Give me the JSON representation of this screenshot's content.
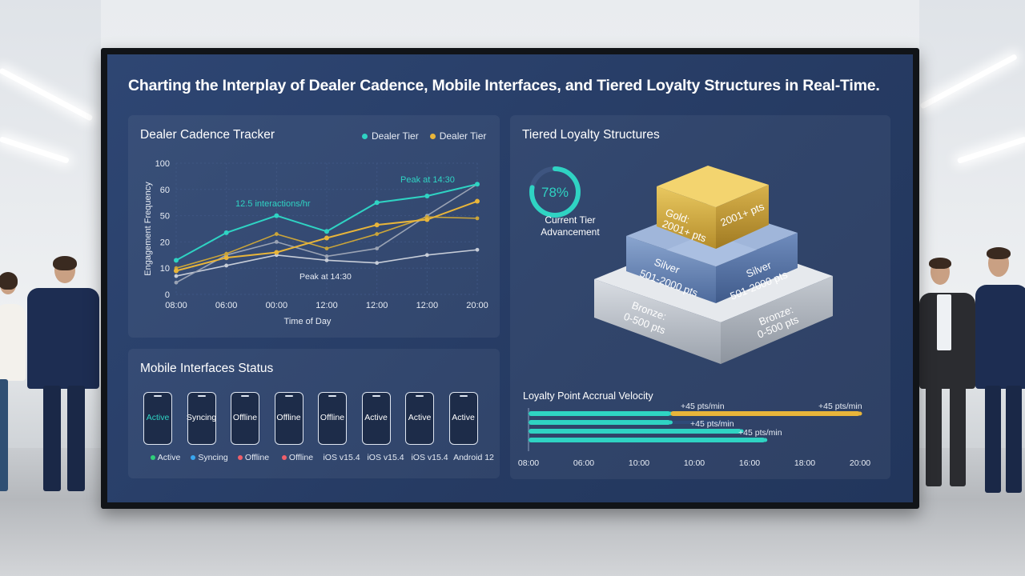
{
  "dashboard": {
    "title": "Charting the Interplay of Dealer Cadence, Mobile Interfaces, and Tiered Loyalty Structures in Real-Time."
  },
  "cadence": {
    "title": "Dealer Cadence Tracker",
    "legend": [
      {
        "label": "Dealer Tier",
        "color": "#2fd3c3"
      },
      {
        "label": "Dealer Tier",
        "color": "#e8b53a"
      }
    ],
    "annotations": {
      "peak_top": "Peak at 14:30",
      "rate": "12.5 interactions/hr",
      "peak_bottom": "Peak at 14:30"
    }
  },
  "chart_data": {
    "type": "line",
    "title": "Dealer Cadence Tracker",
    "xlabel": "Time of Day",
    "ylabel": "Engagement Frequency",
    "x": [
      "08:00",
      "06:00",
      "00:00",
      "12:00",
      "12:00",
      "12:00",
      "20:00"
    ],
    "y_ticks": [
      "100",
      "60",
      "50",
      "20",
      "10",
      "0"
    ],
    "ylim": [
      0,
      100
    ],
    "series": [
      {
        "name": "Dealer Tier",
        "color": "#2fd3c3",
        "values": [
          26,
          47,
          60,
          48,
          70,
          75,
          84
        ]
      },
      {
        "name": "Dealer Tier",
        "color": "#e8b53a",
        "values": [
          18,
          28,
          32,
          43,
          53,
          57,
          71
        ]
      },
      {
        "name": "",
        "color": "#c9a43a",
        "values": [
          20,
          31,
          46,
          35,
          46,
          59,
          58
        ]
      },
      {
        "name": "",
        "color": "#c7cdd8",
        "values": [
          14,
          22,
          30,
          26,
          24,
          30,
          34
        ]
      },
      {
        "name": "",
        "color": "#9aa3b4",
        "values": [
          9,
          30,
          40,
          29,
          35,
          60,
          84
        ]
      }
    ],
    "grid": true
  },
  "mobile": {
    "title": "Mobile Interfaces Status",
    "phones": [
      {
        "label": "Active",
        "color": "#2fd3c3"
      },
      {
        "label": "Syncing",
        "color": "#ffffff"
      },
      {
        "label": "Offline",
        "color": "#ffffff"
      },
      {
        "label": "Offline",
        "color": "#ffffff"
      },
      {
        "label": "Offline",
        "color": "#ffffff"
      },
      {
        "label": "Active",
        "color": "#ffffff"
      },
      {
        "label": "Active",
        "color": "#ffffff"
      },
      {
        "label": "Active",
        "color": "#ffffff"
      }
    ],
    "legend": [
      {
        "label": "Active",
        "dot": "#2fcf7a"
      },
      {
        "label": "Syncing",
        "dot": "#39a7f0"
      },
      {
        "label": "Offline",
        "dot": "#ef5f6a"
      },
      {
        "label": "Offline",
        "dot": "#ef5f6a"
      },
      {
        "label": "iOS v15.4",
        "dot": ""
      },
      {
        "label": "iOS v15.4",
        "dot": ""
      },
      {
        "label": "iOS v15.4",
        "dot": ""
      },
      {
        "label": "Android 12",
        "dot": ""
      }
    ]
  },
  "loyalty": {
    "title": "Tiered Loyalty Structures",
    "gauge": {
      "value": 0.78,
      "label": "78%",
      "caption_1": "Current Tier",
      "caption_2": "Advancement"
    },
    "tiers": {
      "gold": {
        "front_1": "Gold:",
        "front_2": "2001+ pts",
        "side": "2001+ pts"
      },
      "silver": {
        "front_1": "Silver",
        "front_2": "501-2000 pts",
        "side_1": "Silver",
        "side_2": "501-2000 pts"
      },
      "bronze": {
        "front_1": "Bronze:",
        "front_2": "0-500 pts",
        "side_1": "Bronze:",
        "side_2": "0-500 pts"
      }
    },
    "velocity": {
      "title": "Loyalty Point Accrual Velocity",
      "labels": [
        "+45 pts/min",
        "+45 pts/min",
        "+45 pts/min",
        "+45 pts/min"
      ],
      "bars": [
        {
          "start": "06:00",
          "end": "12:00",
          "color": "#2fd3c3"
        },
        {
          "start": "12:00",
          "end": "20:00",
          "color": "#e8b53a"
        },
        {
          "start": "06:00",
          "end": "12:00",
          "color": "#2fd3c3"
        },
        {
          "start": "06:00",
          "end": "15:00",
          "color": "#2fd3c3"
        },
        {
          "start": "06:00",
          "end": "16:00",
          "color": "#2fd3c3"
        }
      ],
      "ticks": [
        "08:00",
        "06:00",
        "10:00",
        "10:00",
        "16:00",
        "18:00",
        "20:00"
      ]
    }
  }
}
